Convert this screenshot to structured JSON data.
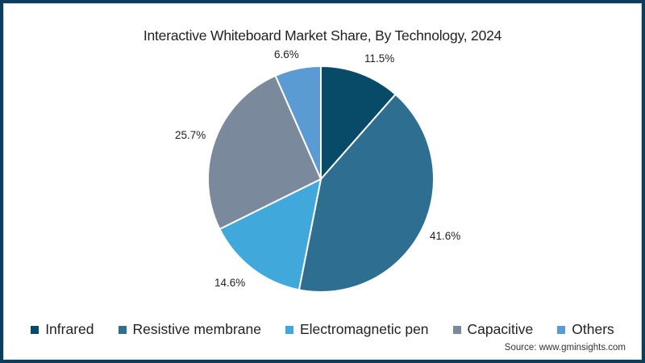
{
  "chart_data": {
    "type": "pie",
    "title": "Interactive Whiteboard Market Share, By Technology, 2024",
    "categories": [
      "Infrared",
      "Resistive membrane",
      "Electromagnetic pen",
      "Capacitive",
      "Others"
    ],
    "values": [
      11.5,
      41.6,
      14.6,
      25.7,
      6.6
    ],
    "value_labels": [
      "11.5%",
      "41.6%",
      "14.6%",
      "25.7%",
      "6.6%"
    ],
    "colors": [
      "#074b68",
      "#2e6e91",
      "#41a8dc",
      "#7a8a9c",
      "#5a9bd3"
    ],
    "start_angle_deg": 0,
    "direction": "clockwise",
    "legend_position": "bottom",
    "source": "Source: www.gminsights.com"
  },
  "title": "Interactive Whiteboard Market Share, By Technology, 2024",
  "legend": [
    {
      "label": "Infrared",
      "color": "#074b68"
    },
    {
      "label": "Resistive membrane",
      "color": "#2e6e91"
    },
    {
      "label": "Electromagnetic pen",
      "color": "#41a8dc"
    },
    {
      "label": "Capacitive",
      "color": "#7a8a9c"
    },
    {
      "label": "Others",
      "color": "#5a9bd3"
    }
  ],
  "labels": {
    "infrared": "11.5%",
    "resistive": "41.6%",
    "em_pen": "14.6%",
    "capacitive": "25.7%",
    "others": "6.6%"
  },
  "source": "Source: www.gminsights.com"
}
